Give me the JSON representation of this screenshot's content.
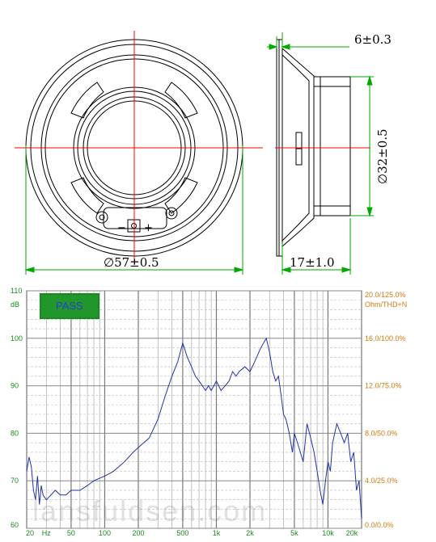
{
  "drawing": {
    "dim_outer_diameter": "∅57±0.5",
    "dim_flange_thickness": "6±0.3",
    "dim_magnet_diameter": "∅32±0.5",
    "dim_depth": "17±1.0",
    "terminal_minus": "−",
    "terminal_plus": "+",
    "line_color": "#000000",
    "center_line_color": "#ff0000",
    "dimension_line_color": "#00aa00"
  },
  "chart_data": {
    "type": "line",
    "badge": "PASS",
    "left_axis_unit": "dB",
    "right_axis_unit": "Ohm/THD+N",
    "y_ticks": [
      "110",
      "100",
      "90",
      "80",
      "70",
      "60"
    ],
    "right_ticks": [
      "20.0/125.0%",
      "16.0/100.0%",
      "12.0/75.0%",
      "8.0/50.0%",
      "4.0/25.0%",
      "0.0/0.0%"
    ],
    "x_ticks": [
      "20",
      "Hz",
      "50",
      "100",
      "200",
      "500",
      "1k",
      "2k",
      "5k",
      "10k",
      "20k"
    ],
    "ylim": [
      60,
      110
    ],
    "xlim": [
      20,
      20000
    ],
    "x_scale": "log",
    "grid": true,
    "series": [
      {
        "color": "#2233aa",
        "x": [
          20,
          21,
          22,
          23,
          24,
          25,
          26,
          27,
          28,
          30,
          33,
          36,
          40,
          45,
          50,
          60,
          70,
          80,
          100,
          120,
          150,
          180,
          200,
          250,
          300,
          350,
          400,
          450,
          500,
          550,
          600,
          650,
          700,
          750,
          800,
          850,
          900,
          950,
          1000,
          1100,
          1200,
          1300,
          1400,
          1500,
          1600,
          1800,
          2000,
          2200,
          2500,
          2800,
          3000,
          3200,
          3400,
          3600,
          3800,
          4000,
          4200,
          4500,
          4800,
          5000,
          5500,
          6000,
          6500,
          7000,
          7500,
          8000,
          8500,
          9000,
          9500,
          10000,
          10500,
          11000,
          12000,
          13000,
          14000,
          15000,
          16000,
          17000,
          18000,
          19000,
          20000
        ],
        "y": [
          72,
          75,
          73,
          68,
          66,
          71,
          65,
          69,
          67,
          66,
          67,
          68,
          67,
          67,
          68,
          68,
          69,
          70,
          71,
          72,
          74,
          76,
          77,
          79,
          83,
          88,
          92,
          95,
          99,
          96,
          94,
          92,
          91,
          90,
          89,
          90,
          89,
          90,
          91,
          89,
          90,
          91,
          93,
          92,
          93,
          94,
          93,
          95,
          98,
          100,
          97,
          93,
          91,
          92,
          88,
          84,
          83,
          80,
          76,
          80,
          77,
          74,
          82,
          79,
          76,
          72,
          68,
          65,
          70,
          74,
          72,
          78,
          82,
          80,
          78,
          80,
          74,
          76,
          68,
          70,
          62
        ]
      }
    ]
  },
  "watermark": "lansfuldsen.com"
}
